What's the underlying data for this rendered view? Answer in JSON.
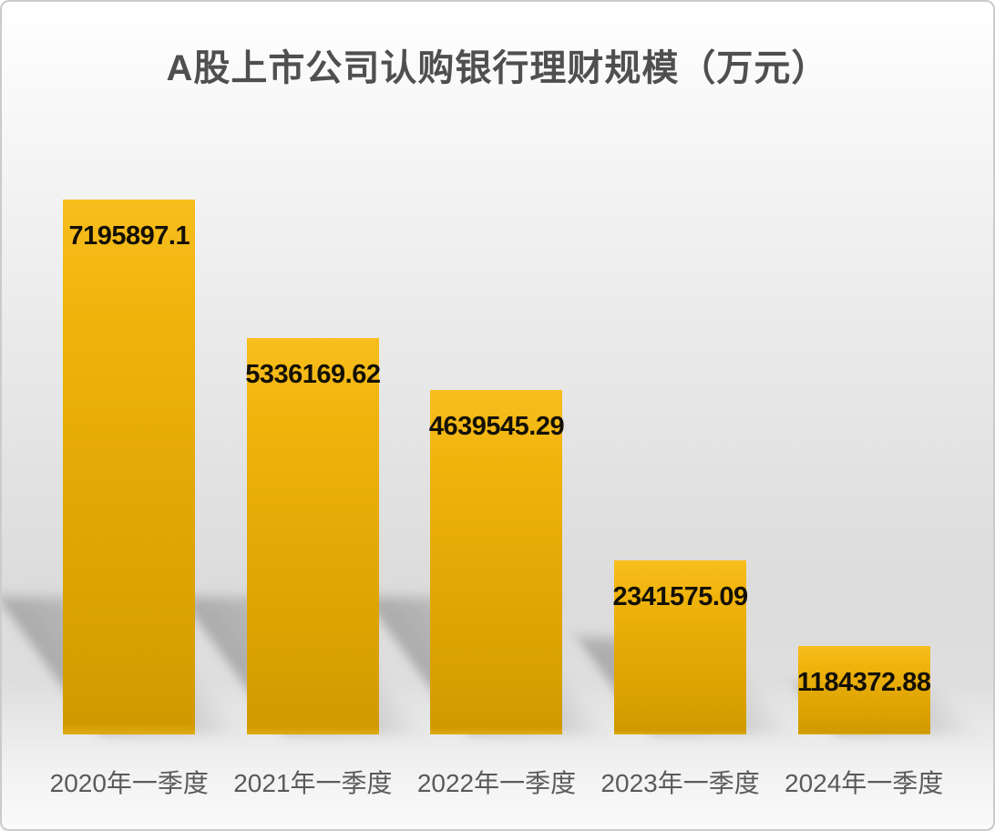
{
  "chart_data": {
    "type": "bar",
    "title": "A股上市公司认购银行理财规模（万元）",
    "categories": [
      "2020年一季度",
      "2021年一季度",
      "2022年一季度",
      "2023年一季度",
      "2024年一季度"
    ],
    "values": [
      7195897.1,
      5336169.62,
      4639545.29,
      2341575.09,
      1184372.88
    ],
    "value_labels": [
      "7195897.1",
      "5336169.62",
      "4639545.29",
      "2341575.09",
      "1184372.88"
    ],
    "xlabel": "",
    "ylabel": "",
    "ylim": [
      0,
      7195897.1
    ],
    "grid": false,
    "legend": "none",
    "colors": {
      "bar_top": "#f8be1e",
      "bar_bottom": "#d09a00",
      "title_text": "#4f4f4f",
      "value_label_text": "#141005",
      "axis_label_text": "#5a5a5a",
      "background_top": "#ffffff",
      "background_mid": "#dcdcdc",
      "frame_border": "#cbcbcb"
    }
  }
}
